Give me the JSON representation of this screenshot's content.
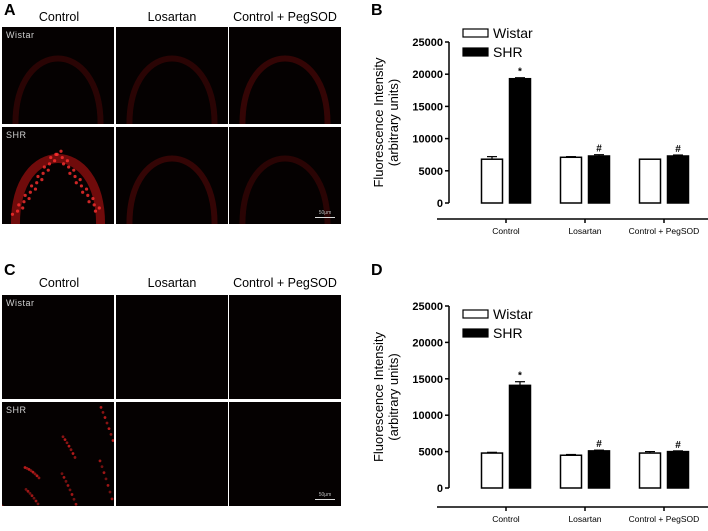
{
  "panel_a": {
    "letter": "A",
    "columns": [
      "Control",
      "Losartan",
      "Control + PegSOD"
    ],
    "rows": [
      "Wistar",
      "SHR"
    ],
    "scale_bar": "50μm"
  },
  "panel_b": {
    "letter": "B"
  },
  "panel_c": {
    "letter": "C",
    "columns": [
      "Control",
      "Losartan",
      "Control + PegSOD"
    ],
    "rows": [
      "Wistar",
      "SHR"
    ],
    "scale_bar": "50μm"
  },
  "panel_d": {
    "letter": "D"
  },
  "colors": {
    "wistar_fill": "#ffffff",
    "shr_fill": "#000000",
    "fluorescence": "#c81414"
  },
  "chart_data": [
    {
      "panel": "B",
      "type": "bar",
      "title": "",
      "xlabel": "",
      "ylabel": "Fluorescence Intensity (arbitrary units)",
      "ylim": [
        0,
        25000
      ],
      "yticks": [
        0,
        5000,
        10000,
        15000,
        20000,
        25000
      ],
      "categories": [
        "Control",
        "Losartan",
        "Control + PegSOD"
      ],
      "legend": {
        "position": "top-left",
        "entries": [
          "Wistar",
          "SHR"
        ]
      },
      "grid": false,
      "series": [
        {
          "name": "Wistar",
          "values": [
            6800,
            7100,
            6800
          ],
          "errors": [
            400,
            100,
            0
          ],
          "annotations": [
            "",
            "",
            ""
          ]
        },
        {
          "name": "SHR",
          "values": [
            19300,
            7300,
            7300
          ],
          "errors": [
            150,
            200,
            150
          ],
          "annotations": [
            "*",
            "#",
            "#"
          ]
        }
      ]
    },
    {
      "panel": "D",
      "type": "bar",
      "title": "",
      "xlabel": "",
      "ylabel": "Fluorescence Intensity (arbitrary units)",
      "ylim": [
        0,
        25000
      ],
      "yticks": [
        0,
        5000,
        10000,
        15000,
        20000,
        25000
      ],
      "categories": [
        "Control",
        "Losartan",
        "Control + PegSOD"
      ],
      "legend": {
        "position": "top-left",
        "entries": [
          "Wistar",
          "SHR"
        ]
      },
      "grid": false,
      "series": [
        {
          "name": "Wistar",
          "values": [
            4800,
            4500,
            4800
          ],
          "errors": [
            100,
            100,
            200
          ],
          "annotations": [
            "",
            "",
            ""
          ]
        },
        {
          "name": "SHR",
          "values": [
            14100,
            5100,
            5000
          ],
          "errors": [
            500,
            100,
            100
          ],
          "annotations": [
            "*",
            "#",
            "#"
          ]
        }
      ]
    }
  ]
}
